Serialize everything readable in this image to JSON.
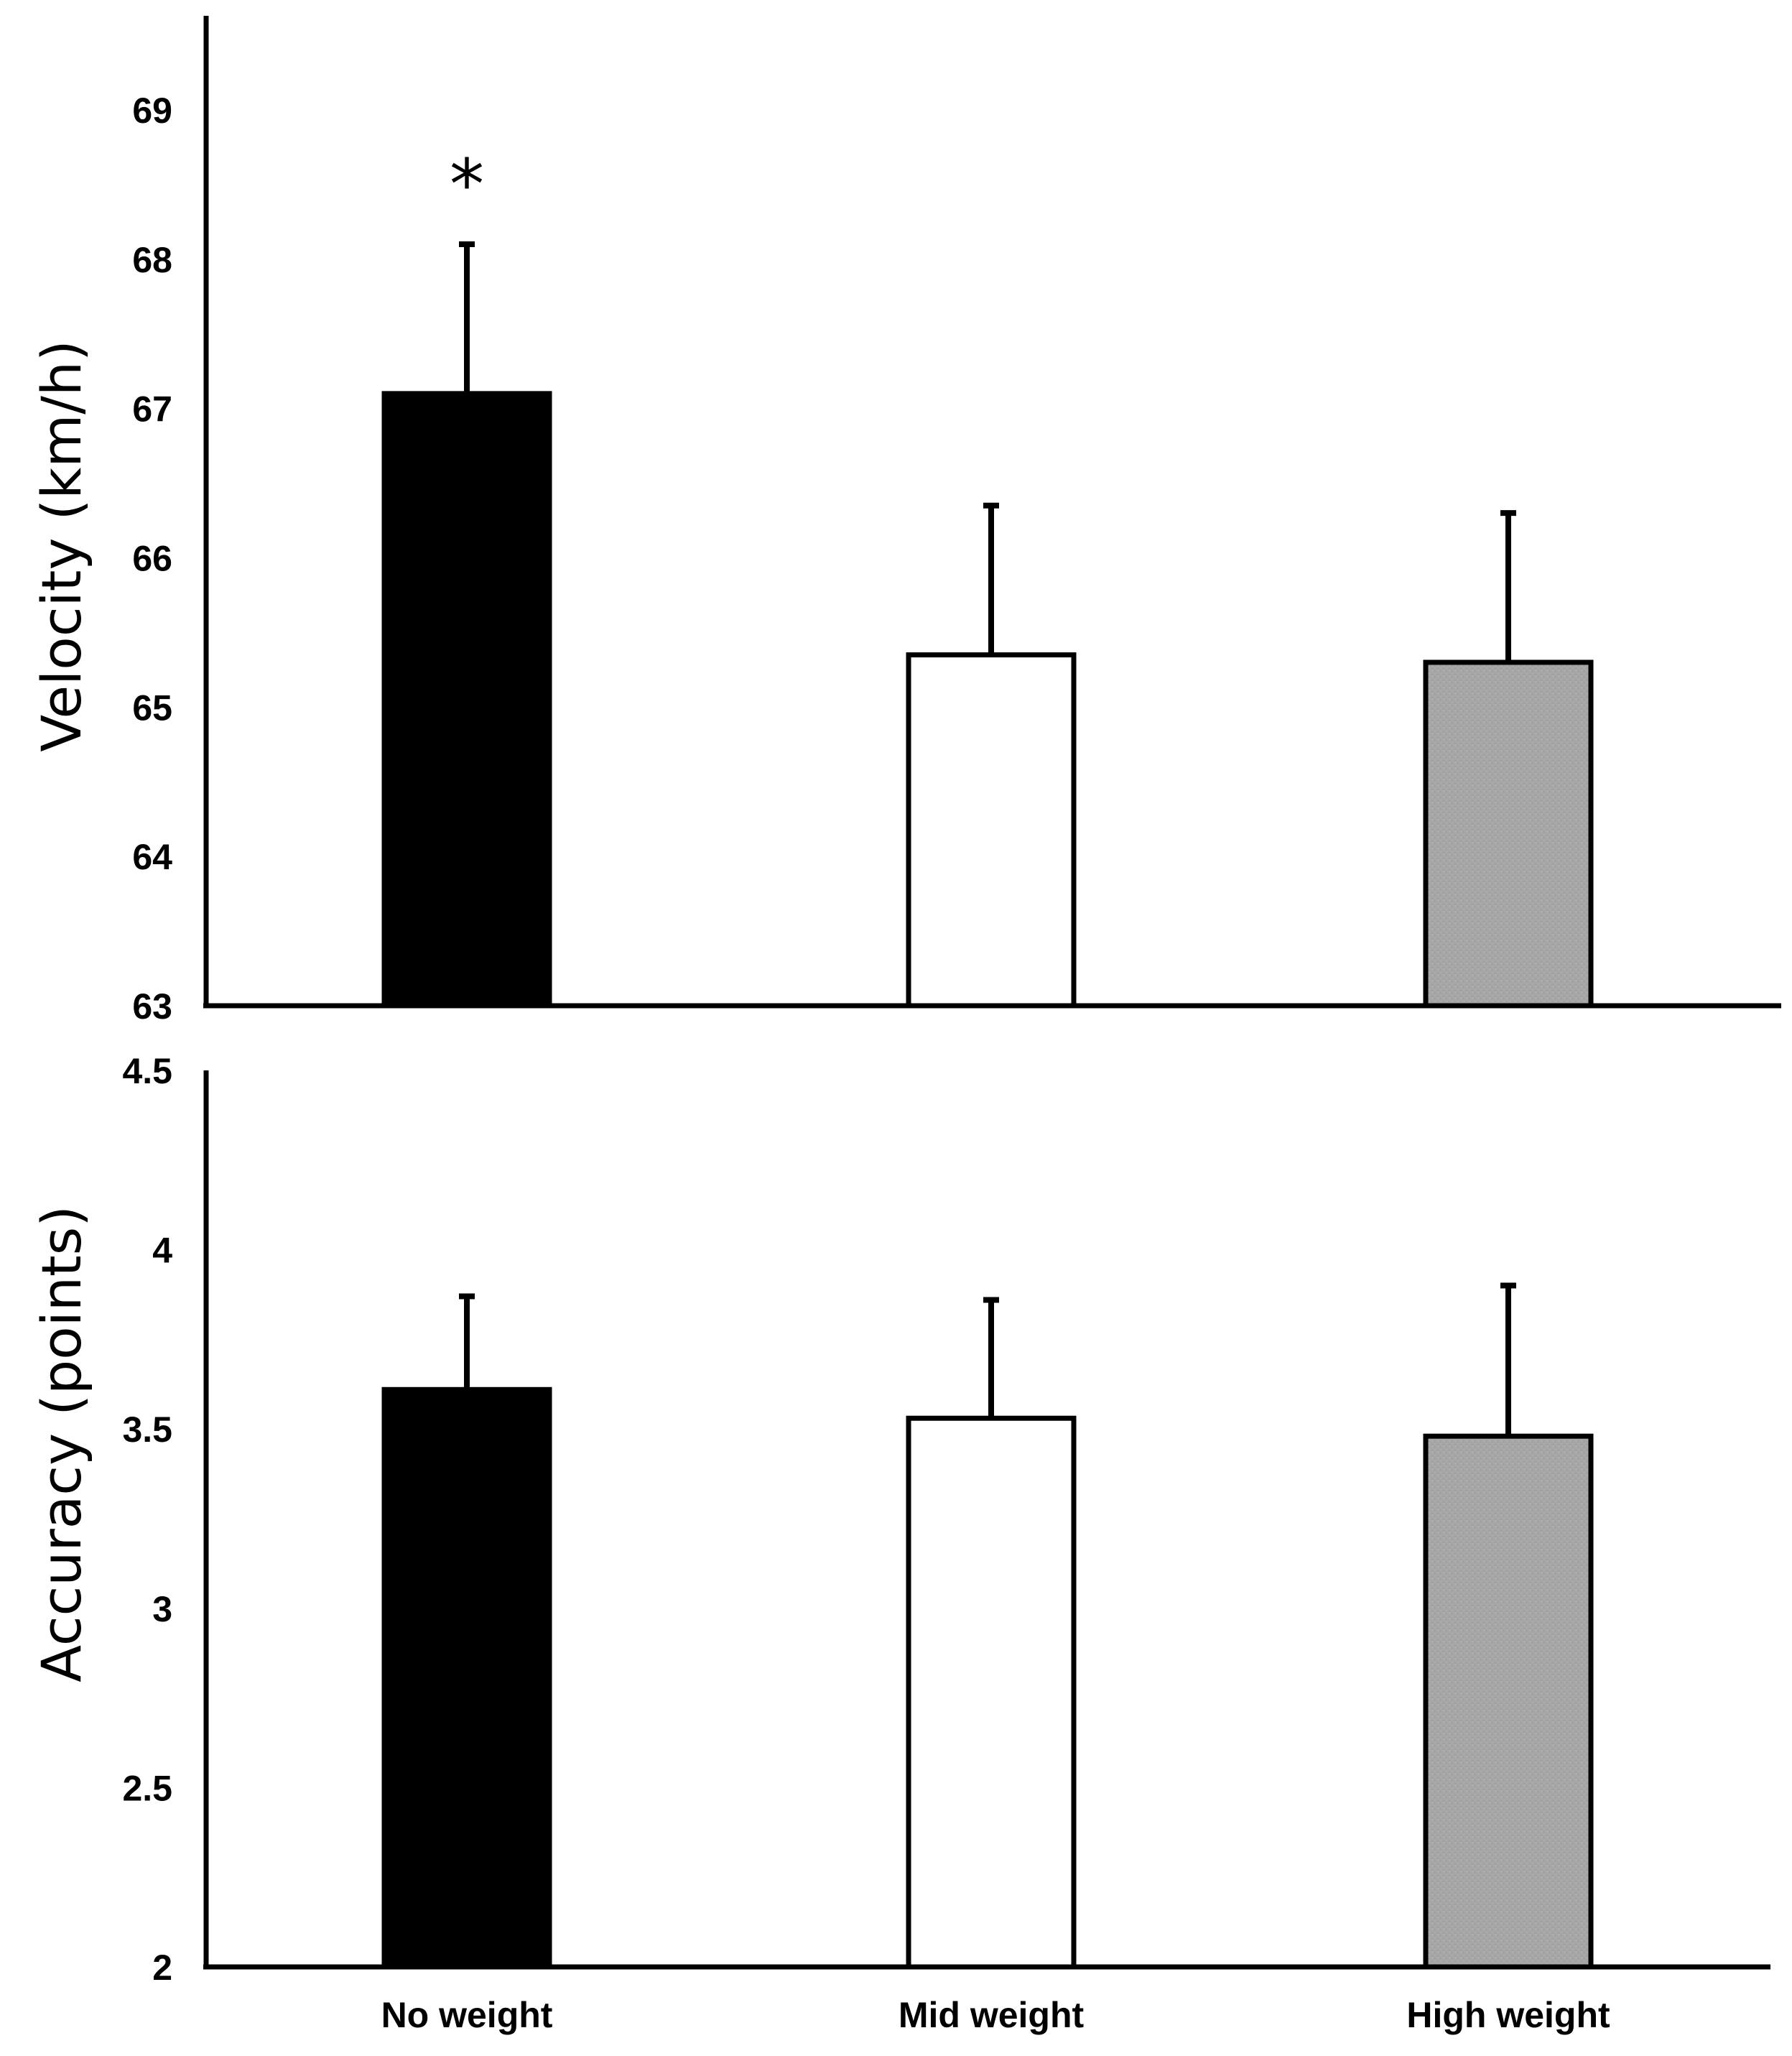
{
  "chart_data": [
    {
      "type": "bar",
      "title": "",
      "xlabel": "",
      "ylabel": "Velocity (km/h)",
      "ylim": [
        63,
        69.6
      ],
      "yticks": [
        63,
        64,
        65,
        66,
        67,
        68,
        69
      ],
      "categories": [
        "No weight",
        "Mid weight",
        "High weight"
      ],
      "values": [
        67.1,
        65.35,
        65.3
      ],
      "errors": [
        1.0,
        1.0,
        1.0
      ],
      "colors": [
        "#000000",
        "#ffffff",
        "#a6a6a6"
      ],
      "annotations": [
        {
          "category": "No weight",
          "text": "*"
        }
      ],
      "grid": false
    },
    {
      "type": "bar",
      "title": "",
      "xlabel": "",
      "ylabel": "Accuracy (points)",
      "ylim": [
        2,
        4.5
      ],
      "yticks": [
        2,
        2.5,
        3,
        3.5,
        4,
        4.5
      ],
      "categories": [
        "No weight",
        "Mid weight",
        "High weight"
      ],
      "values": [
        3.61,
        3.53,
        3.48
      ],
      "errors": [
        0.26,
        0.33,
        0.42
      ],
      "colors": [
        "#000000",
        "#ffffff",
        "#a6a6a6"
      ],
      "annotations": [],
      "grid": false
    }
  ],
  "x_category_labels": [
    "No weight",
    "Mid weight",
    "High weight"
  ]
}
